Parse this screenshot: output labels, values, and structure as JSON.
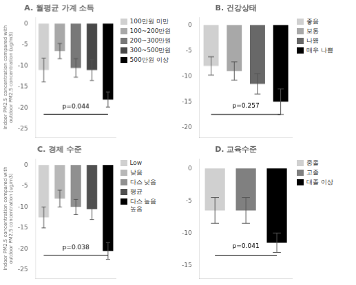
{
  "chart_data": [
    {
      "type": "bar",
      "title": "A. 월평균 가계 소득",
      "categories": [
        "100만원 미만",
        "100~200만원",
        "200~300만원",
        "300~500만원",
        "500만원 이상"
      ],
      "values": [
        -11.0,
        -6.5,
        -10.5,
        -11.0,
        -18.0
      ],
      "errors": [
        2.8,
        1.8,
        2.2,
        2.5,
        1.8
      ],
      "colors": [
        "#d0d0d0",
        "#a8a8a8",
        "#787878",
        "#484848",
        "#000000"
      ],
      "ylabel": "Indoor PM2.5 concentration compared with\noutdoor PM2.5 concentration (ug/m3)",
      "ylim": [
        -27,
        1.5
      ],
      "yticks": [
        0,
        -5,
        -10,
        -15,
        -20,
        -25
      ],
      "annotations": [
        {
          "text": "p=0.044",
          "y": -20.5,
          "line_y": -21.5
        }
      ],
      "grid": false,
      "legend": "right",
      "tick_labels": "y"
    },
    {
      "type": "bar",
      "title": "B. 건강상태",
      "categories": [
        "좋음",
        "보통",
        "나쁨",
        "매우 나쁨"
      ],
      "values": [
        -8.0,
        -9.0,
        -11.5,
        -15.0
      ],
      "errors": [
        1.8,
        1.8,
        2.0,
        2.5
      ],
      "colors": [
        "#d0d0d0",
        "#a8a8a8",
        "#686868",
        "#000000"
      ],
      "ylim": [
        -22,
        1.5
      ],
      "yticks": [
        0,
        -5,
        -10,
        -15,
        -20
      ],
      "annotations": [
        {
          "text": "p=0.257",
          "y": -16.5,
          "line_y": -17.5
        }
      ],
      "grid": false,
      "legend": "right",
      "tick_labels": "y"
    },
    {
      "type": "bar",
      "title": "C. 경제 수준",
      "categories": [
        "Low",
        "낮음",
        "다스 낮음",
        "평균",
        "다스 높음\n높음"
      ],
      "values": [
        -12.5,
        -8.0,
        -10.0,
        -10.5,
        -20.5
      ],
      "errors": [
        2.5,
        2.0,
        1.8,
        2.5,
        2.0
      ],
      "colors": [
        "#d0d0d0",
        "#b8b8b8",
        "#909090",
        "#505050",
        "#000000"
      ],
      "ylabel": "Indoor PM2.5 concentration compared with\noutdoor PM2.5 concentration (ug/m3)",
      "ylim": [
        -27,
        1.5
      ],
      "yticks": [
        0,
        -5,
        -10,
        -15,
        -20,
        -25
      ],
      "annotations": [
        {
          "text": "p=0.038",
          "y": -20.5,
          "line_y": -21.5
        }
      ],
      "grid": false,
      "legend": "right",
      "tick_labels": "y"
    },
    {
      "type": "bar",
      "title": "D. 교육수준",
      "categories": [
        "중졸",
        "고졸",
        "대졸 이상"
      ],
      "values": [
        -6.5,
        -6.5,
        -11.5
      ],
      "errors": [
        2.0,
        2.0,
        1.5
      ],
      "colors": [
        "#d0d0d0",
        "#808080",
        "#000000"
      ],
      "ylim": [
        -17,
        1.5
      ],
      "yticks": [
        0,
        -5,
        -10,
        -15
      ],
      "annotations": [
        {
          "text": "p=0.041",
          "y": -12.5,
          "line_y": -13.5
        }
      ],
      "grid": false,
      "legend": "right",
      "tick_labels": "y"
    }
  ]
}
